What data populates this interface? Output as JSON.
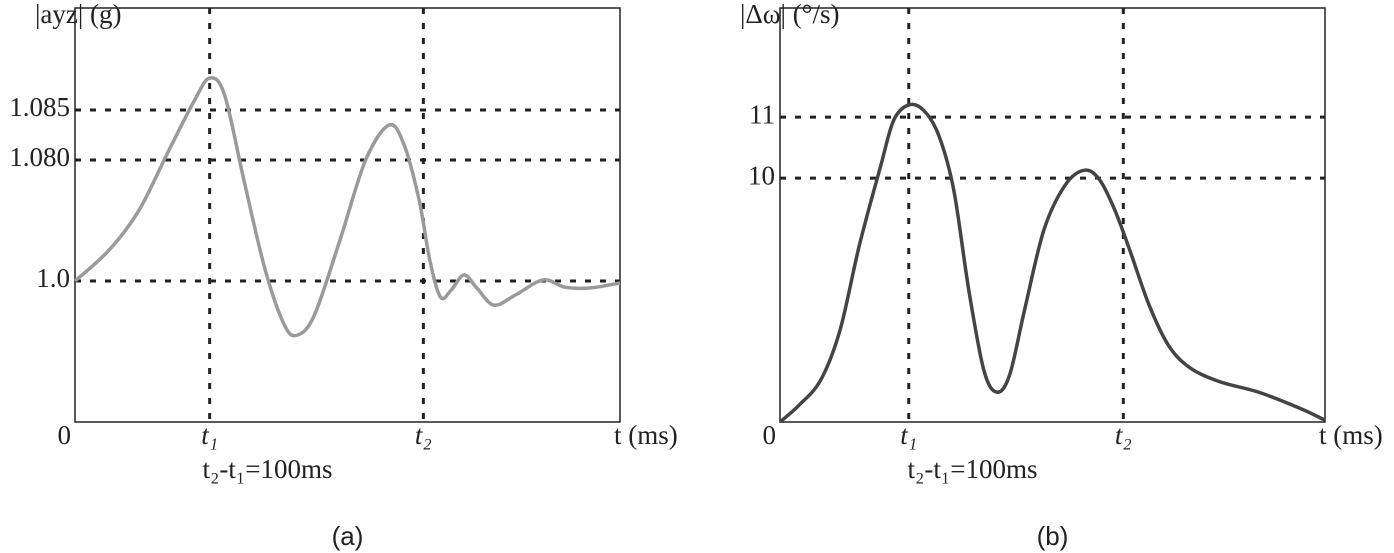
{
  "chart_data": [
    {
      "type": "line",
      "title": "(a)",
      "y_label": "|ayz| (g)",
      "x_label": "t (ms)",
      "annotation": "t₂-t₁=100ms",
      "color": "#9a9a9a",
      "x": [
        0,
        16,
        30,
        44,
        56,
        63,
        70,
        79,
        89,
        98,
        104,
        112,
        124,
        136,
        147,
        154,
        161,
        166,
        171,
        176,
        182,
        188,
        196,
        206,
        219,
        229,
        241,
        255
      ],
      "values": [
        1.0,
        1.0205,
        1.0469,
        1.081,
        1.086,
        1.0882,
        1.0865,
        1.0668,
        1.0073,
        0.9709,
        0.9643,
        0.9775,
        1.0271,
        1.08,
        1.0835,
        1.0815,
        1.0536,
        1.0139,
        0.9894,
        0.994,
        1.004,
        0.9954,
        0.9841,
        0.9907,
        1.0007,
        0.996,
        0.9954,
        0.9987
      ],
      "xlim": [
        0,
        255
      ],
      "xticks": [
        0,
        {
          "value": 63,
          "label": "t₁"
        },
        {
          "value": 163,
          "label": "t₂"
        }
      ],
      "ylim": [
        0.907,
        1.0952
      ],
      "yticks": [
        {
          "value": 1,
          "label": "1.0"
        },
        {
          "value": 1.08,
          "label": "1.080"
        },
        {
          "value": 1.085,
          "label": "1.085"
        }
      ],
      "grid": true
    },
    {
      "type": "line",
      "title": "(b)",
      "y_label": "|Δω| (°/s)",
      "x_label": "t (ms)",
      "annotation": "t₂-t₁=100ms",
      "color": "#444444",
      "x": [
        0,
        9,
        19,
        28,
        37,
        47,
        53,
        60,
        67,
        74,
        81,
        88,
        95,
        101,
        107,
        114,
        123,
        133,
        142,
        149,
        156,
        163,
        172,
        181,
        191,
        205,
        223,
        242,
        254
      ],
      "values": [
        6,
        6.28,
        6.69,
        7.51,
        8.9,
        10.21,
        10.95,
        11.2,
        11.11,
        10.7,
        9.8,
        8.16,
        6.85,
        6.49,
        6.77,
        7.84,
        9.15,
        9.89,
        10.13,
        9.97,
        9.48,
        8.82,
        7.92,
        7.26,
        6.89,
        6.66,
        6.49,
        6.23,
        6.03
      ],
      "xlim": [
        0,
        254
      ],
      "xticks": [
        0,
        {
          "value": 60,
          "label": "t₁"
        },
        {
          "value": 160,
          "label": "t₂"
        }
      ],
      "ylim": [
        6,
        12.79
      ],
      "yticks": [
        10,
        11
      ],
      "grid": true
    }
  ]
}
